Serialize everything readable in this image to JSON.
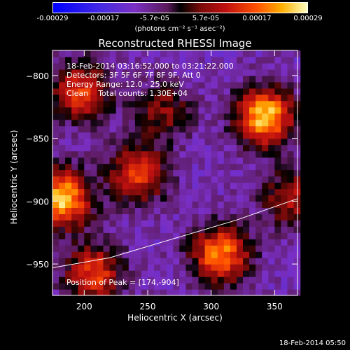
{
  "chart_data": {
    "type": "heatmap",
    "title": "Reconstructed RHESSI Image",
    "xlabel": "Heliocentric X (arcsec)",
    "ylabel": "Heliocentric Y (arcsec)",
    "xlim": [
      175,
      368
    ],
    "ylim": [
      -975,
      -780
    ],
    "x_ticks": [
      200,
      250,
      300,
      350
    ],
    "y_ticks": [
      -800,
      -850,
      -900,
      -950
    ],
    "colorbar": {
      "ticks": [
        "-0.00029",
        "-0.00017",
        "-5.7e-05",
        "5.7e-05",
        "0.00017",
        "0.00029"
      ],
      "unit": "(photons cm⁻² s⁻¹ asec⁻²)",
      "range": [
        -0.00029,
        0.00029
      ]
    },
    "annotations": [
      "18-Feb-2014 03:16:52.000 to 03:21:22.000",
      "Detectors: 3F 5F 6F 7F 8F 9F, Att 0",
      "Energy Range: 12.0 - 25.0 keV",
      "Clean    Total counts: 1.30E+04"
    ],
    "peak_label": "Position of Peak = [174,-904]",
    "sources": [
      {
        "x": 340,
        "y": -835,
        "flux": 0.00029
      },
      {
        "x": 180,
        "y": -900,
        "flux": 0.00029
      },
      {
        "x": 305,
        "y": -945,
        "flux": 0.00025
      },
      {
        "x": 240,
        "y": -880,
        "flux": 0.0002
      },
      {
        "x": 195,
        "y": -815,
        "flux": 0.0002
      },
      {
        "x": 205,
        "y": -960,
        "flux": 0.0002
      },
      {
        "x": 260,
        "y": -830,
        "flux": 0.00012
      },
      {
        "x": 360,
        "y": -900,
        "flux": 0.00015
      }
    ],
    "limb_curve": [
      [
        175,
        -953
      ],
      [
        220,
        -945
      ],
      [
        270,
        -930
      ],
      [
        320,
        -915
      ],
      [
        368,
        -898
      ]
    ]
  },
  "footer": {
    "timestamp": "18-Feb-2014 05:50"
  }
}
